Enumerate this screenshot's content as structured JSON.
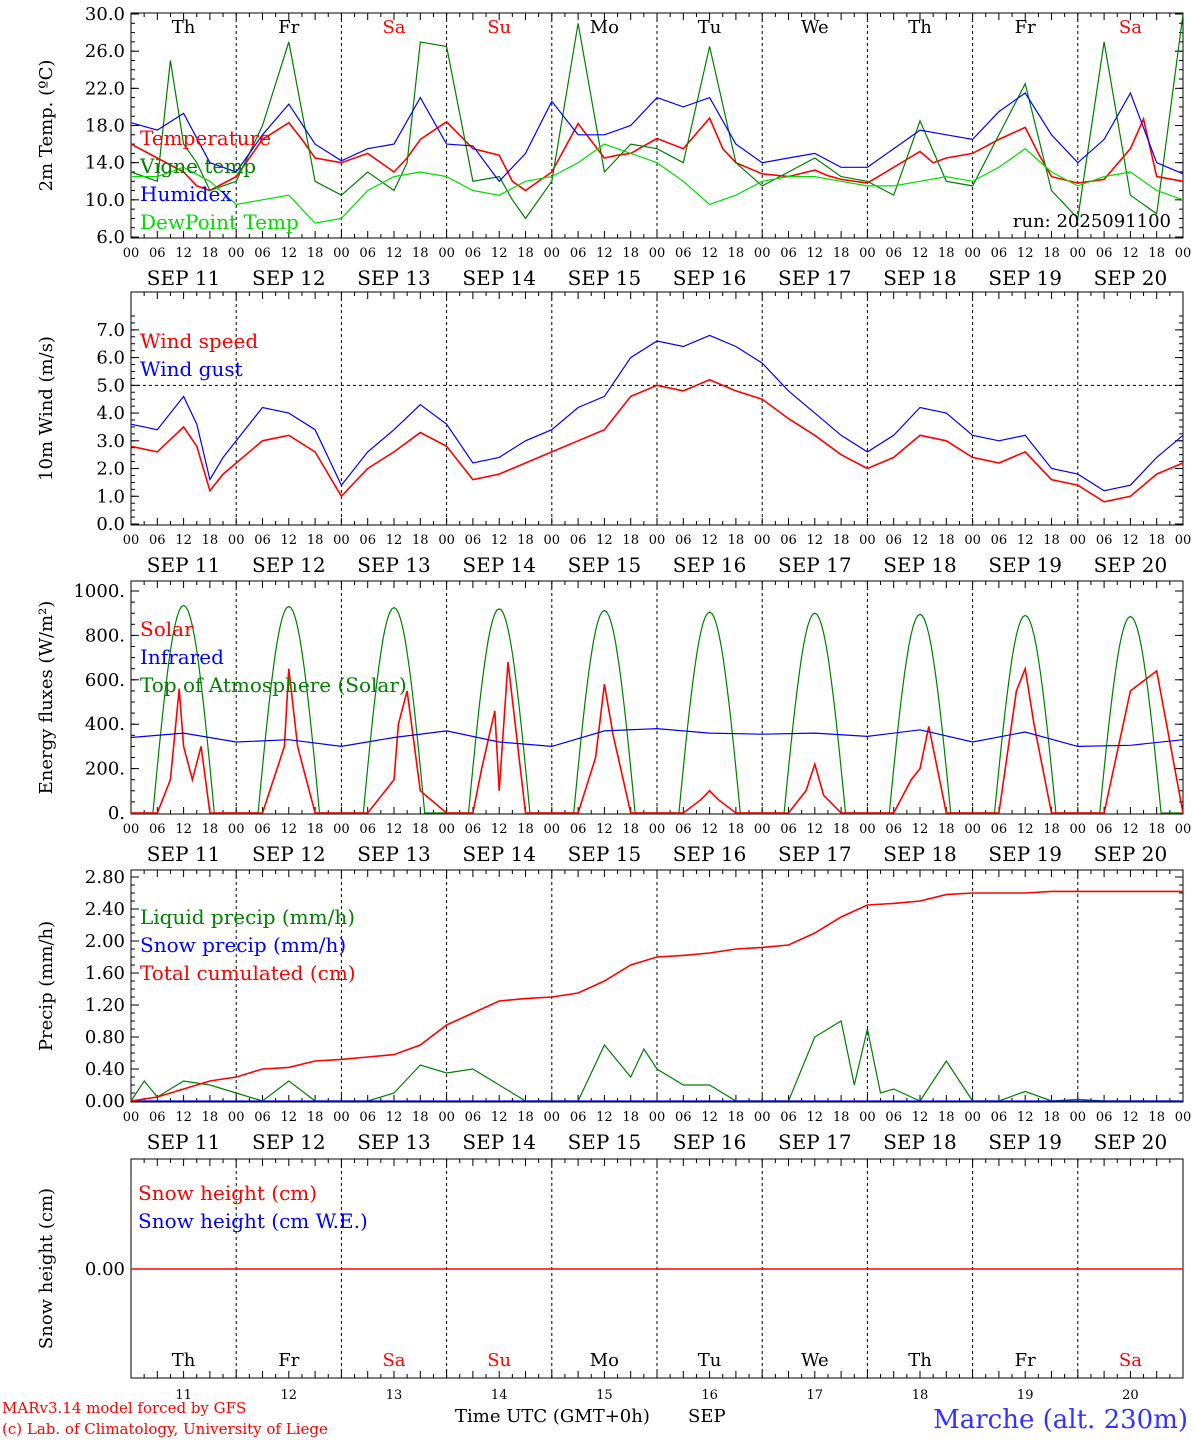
{
  "days_top": [
    "Th",
    "Fr",
    "Sa",
    "Su",
    "Mo",
    "Tu",
    "We",
    "Th",
    "Fr",
    "Sa"
  ],
  "weekend_days": [
    "Sa",
    "Su"
  ],
  "date_labels": [
    "SEP 11",
    "SEP 12",
    "SEP 13",
    "SEP 14",
    "SEP 15",
    "SEP 16",
    "SEP 17",
    "SEP 18",
    "SEP 19",
    "SEP 20"
  ],
  "hour_ticks": [
    "00",
    "06",
    "12",
    "18"
  ],
  "day_numbers": [
    "11",
    "12",
    "13",
    "14",
    "15",
    "16",
    "17",
    "18",
    "19",
    "20"
  ],
  "colors": {
    "red": "#ff0000",
    "green": "#007f00",
    "blue": "#0000ff",
    "lightgreen": "#00dd00",
    "weekend": "#ff0000",
    "text": "#000000"
  },
  "footer": {
    "model": "MARv3.14 model forced by GFS",
    "credit": "(c) Lab. of Climatology, University of Liege",
    "xlabel": "Time UTC (GMT+0h)",
    "month": "SEP",
    "station": "Marche (alt. 230m)"
  },
  "chart_data": [
    {
      "type": "line",
      "ylabel": "2m Temp. (ºC)",
      "ylim": [
        6,
        30
      ],
      "yticks": [
        "6.0",
        "10.0",
        "14.0",
        "18.0",
        "22.0",
        "26.0",
        "30.0"
      ],
      "annotation": "run: 2025091100",
      "x_unit": "hours since 2025-09-11 00 UTC",
      "series": [
        {
          "name": "Temperature",
          "color": "red",
          "x": [
            0,
            6,
            12,
            15,
            18,
            24,
            30,
            36,
            39,
            42,
            48,
            54,
            60,
            63,
            66,
            72,
            78,
            84,
            87,
            90,
            96,
            102,
            108,
            111,
            114,
            120,
            126,
            132,
            135,
            138,
            144,
            150,
            156,
            159,
            162,
            168,
            174,
            180,
            183,
            186,
            192,
            198,
            204,
            207,
            210,
            216,
            222,
            228,
            231,
            234,
            240
          ],
          "values": [
            16,
            14.5,
            13,
            11.5,
            11,
            12.5,
            16.5,
            18.3,
            16.5,
            14.5,
            14,
            15,
            13,
            14.5,
            16.5,
            18.4,
            15.5,
            14.8,
            12,
            11,
            13,
            18.2,
            14.5,
            14.8,
            15,
            16.6,
            15.5,
            18.8,
            15.5,
            14,
            12.8,
            12.5,
            13.2,
            12.6,
            12.2,
            11.8,
            13.5,
            15.2,
            14,
            14.5,
            15,
            16.5,
            17.8,
            15,
            12.5,
            11.8,
            12.2,
            15.5,
            18.7,
            12.5,
            12
          ]
        },
        {
          "name": "Vigne temp",
          "color": "green",
          "x": [
            0,
            6,
            9,
            12,
            15,
            18,
            24,
            30,
            36,
            42,
            48,
            54,
            60,
            63,
            66,
            72,
            78,
            84,
            87,
            90,
            96,
            102,
            108,
            114,
            120,
            126,
            132,
            138,
            144,
            150,
            156,
            162,
            168,
            174,
            180,
            186,
            192,
            198,
            204,
            210,
            216,
            222,
            228,
            234,
            240
          ],
          "values": [
            13,
            12,
            25,
            16,
            14,
            11,
            12,
            18,
            27,
            12,
            10.5,
            13,
            11,
            14,
            27,
            26.5,
            12,
            12.5,
            10,
            8,
            12,
            29,
            13,
            16,
            15.5,
            14,
            26.5,
            14,
            11.5,
            13,
            14.5,
            12.5,
            12,
            10.5,
            18.5,
            12,
            11.5,
            17,
            22.5,
            11,
            8,
            27,
            10.5,
            8.5,
            30
          ]
        },
        {
          "name": "Humidex",
          "color": "blue",
          "x": [
            0,
            6,
            12,
            18,
            24,
            30,
            36,
            42,
            48,
            54,
            60,
            66,
            72,
            78,
            84,
            90,
            96,
            102,
            108,
            114,
            120,
            126,
            132,
            138,
            144,
            150,
            156,
            162,
            168,
            174,
            180,
            186,
            192,
            198,
            204,
            210,
            216,
            222,
            228,
            234,
            240
          ],
          "values": [
            18.3,
            17.5,
            19.3,
            14,
            13,
            17,
            20.3,
            16,
            14.2,
            15.5,
            16,
            21,
            16,
            15.8,
            12,
            15,
            20.6,
            17,
            17,
            18,
            21,
            20,
            21,
            16,
            14,
            14.5,
            15,
            13.5,
            13.5,
            15.5,
            17.5,
            17,
            16.5,
            19.5,
            21.5,
            17,
            14,
            16.5,
            21.5,
            14,
            12.8
          ]
        },
        {
          "name": "DewPoint Temp",
          "color": "lightgreen",
          "x": [
            0,
            6,
            12,
            18,
            24,
            30,
            36,
            42,
            48,
            54,
            60,
            66,
            72,
            78,
            84,
            90,
            96,
            102,
            108,
            114,
            120,
            126,
            132,
            138,
            144,
            150,
            156,
            162,
            168,
            174,
            180,
            186,
            192,
            198,
            204,
            210,
            216,
            222,
            228,
            234,
            240
          ],
          "values": [
            12.5,
            12.5,
            13.5,
            12,
            9.5,
            10,
            10.5,
            7.5,
            8,
            11,
            12.5,
            13,
            12.5,
            11,
            10.5,
            12,
            12.5,
            14,
            16,
            15,
            14,
            12,
            9.5,
            10.5,
            12,
            12.5,
            12.5,
            12,
            11.5,
            11.5,
            12,
            12.5,
            12,
            13.5,
            15.5,
            13,
            11.5,
            12.5,
            13,
            11,
            10
          ]
        }
      ]
    },
    {
      "type": "line",
      "ylabel": "10m Wind (m/s)",
      "ylim": [
        0,
        7.5
      ],
      "yticks": [
        "0.0",
        "1.0",
        "2.0",
        "3.0",
        "4.0",
        "5.0",
        "6.0",
        "7.0"
      ],
      "reference_line": 5.0,
      "x_unit": "hours since 2025-09-11 00 UTC",
      "series": [
        {
          "name": "Wind speed",
          "color": "red",
          "x": [
            0,
            6,
            12,
            15,
            18,
            21,
            24,
            30,
            36,
            42,
            48,
            54,
            60,
            66,
            72,
            78,
            84,
            90,
            96,
            102,
            108,
            114,
            120,
            126,
            132,
            138,
            144,
            150,
            156,
            162,
            168,
            174,
            180,
            186,
            192,
            198,
            204,
            210,
            216,
            222,
            228,
            234,
            240
          ],
          "values": [
            2.8,
            2.6,
            3.5,
            2.8,
            1.2,
            1.8,
            2.2,
            3.0,
            3.2,
            2.6,
            1.0,
            2.0,
            2.6,
            3.3,
            2.8,
            1.6,
            1.8,
            2.2,
            2.6,
            3.0,
            3.4,
            4.6,
            5.0,
            4.8,
            5.2,
            4.8,
            4.5,
            3.8,
            3.2,
            2.5,
            2.0,
            2.4,
            3.2,
            3.0,
            2.4,
            2.2,
            2.6,
            1.6,
            1.4,
            0.8,
            1.0,
            1.8,
            2.2
          ]
        },
        {
          "name": "Wind gust",
          "color": "blue",
          "x": [
            0,
            6,
            12,
            15,
            18,
            21,
            24,
            30,
            36,
            42,
            48,
            54,
            60,
            66,
            72,
            78,
            84,
            90,
            96,
            102,
            108,
            114,
            120,
            126,
            132,
            138,
            144,
            150,
            156,
            162,
            168,
            174,
            180,
            186,
            192,
            198,
            204,
            210,
            216,
            222,
            228,
            234,
            240
          ],
          "values": [
            3.6,
            3.4,
            4.6,
            3.6,
            1.6,
            2.4,
            3.0,
            4.2,
            4.0,
            3.4,
            1.4,
            2.6,
            3.4,
            4.3,
            3.6,
            2.2,
            2.4,
            3.0,
            3.4,
            4.2,
            4.6,
            6.0,
            6.6,
            6.4,
            6.8,
            6.4,
            5.8,
            4.8,
            4.0,
            3.2,
            2.6,
            3.2,
            4.2,
            4.0,
            3.2,
            3.0,
            3.2,
            2.0,
            1.8,
            1.2,
            1.4,
            2.4,
            3.2
          ]
        }
      ]
    },
    {
      "type": "line",
      "ylabel": "Energy fluxes (W/m²)",
      "ylim": [
        0,
        1000
      ],
      "yticks": [
        "0.",
        "200.",
        "400.",
        "600.",
        "800.",
        "1000."
      ],
      "x_unit": "hours since 2025-09-11 00 UTC",
      "daily_toa_peak": [
        935,
        930,
        925,
        920,
        912,
        905,
        900,
        895,
        890,
        885
      ],
      "series": [
        {
          "name": "Solar",
          "color": "red",
          "x": [
            0,
            6,
            9,
            11,
            12,
            14,
            16,
            18,
            24,
            30,
            35,
            36,
            38,
            42,
            48,
            54,
            60,
            61,
            63,
            66,
            72,
            78,
            80,
            83,
            84,
            86,
            90,
            96,
            102,
            106,
            108,
            110,
            114,
            120,
            126,
            130,
            132,
            134,
            138,
            144,
            150,
            154,
            156,
            158,
            162,
            168,
            174,
            178,
            180,
            182,
            186,
            192,
            198,
            202,
            204,
            206,
            210,
            216,
            222,
            228,
            234,
            240
          ],
          "values": [
            0,
            0,
            150,
            560,
            300,
            150,
            300,
            0,
            0,
            0,
            300,
            650,
            300,
            0,
            0,
            0,
            150,
            400,
            550,
            100,
            0,
            0,
            200,
            460,
            100,
            680,
            0,
            0,
            0,
            250,
            580,
            350,
            0,
            0,
            0,
            60,
            100,
            60,
            0,
            0,
            0,
            100,
            220,
            80,
            0,
            0,
            0,
            150,
            200,
            390,
            0,
            0,
            0,
            550,
            650,
            400,
            0,
            0,
            0,
            550,
            640,
            0
          ]
        },
        {
          "name": "Infrared",
          "color": "blue",
          "x": [
            0,
            12,
            24,
            36,
            48,
            60,
            72,
            84,
            96,
            108,
            120,
            132,
            144,
            156,
            168,
            180,
            192,
            204,
            216,
            228,
            240
          ],
          "values": [
            340,
            360,
            320,
            330,
            300,
            340,
            370,
            320,
            300,
            370,
            380,
            360,
            355,
            360,
            345,
            375,
            320,
            365,
            300,
            305,
            330
          ]
        },
        {
          "name": "Top of Atmosphere (Solar)",
          "color": "green",
          "x": [],
          "values": []
        }
      ]
    },
    {
      "type": "line",
      "ylabel": "Precip (mm/h)",
      "ylim": [
        0,
        2.8
      ],
      "yticks": [
        "0.00",
        "0.40",
        "0.80",
        "1.20",
        "1.60",
        "2.00",
        "2.40",
        "2.80"
      ],
      "x_unit": "hours since 2025-09-11 00 UTC",
      "series": [
        {
          "name": "Liquid precip (mm/h)",
          "color": "green",
          "x": [
            0,
            3,
            6,
            12,
            18,
            24,
            30,
            36,
            42,
            48,
            54,
            60,
            66,
            72,
            78,
            84,
            90,
            96,
            102,
            108,
            114,
            117,
            120,
            126,
            132,
            138,
            144,
            150,
            156,
            162,
            165,
            168,
            171,
            174,
            180,
            186,
            192,
            198,
            204,
            210,
            216,
            222,
            228,
            234,
            240
          ],
          "values": [
            0,
            0.25,
            0.05,
            0.25,
            0.2,
            0.1,
            0,
            0.25,
            0,
            0,
            0,
            0.1,
            0.45,
            0.35,
            0.4,
            0.2,
            0,
            0,
            0,
            0.7,
            0.3,
            0.65,
            0.4,
            0.2,
            0.2,
            0,
            0,
            0,
            0.8,
            1.0,
            0.2,
            0.9,
            0.1,
            0.15,
            0,
            0.5,
            0,
            0,
            0.12,
            0,
            0.02,
            0,
            0,
            0,
            0
          ]
        },
        {
          "name": "Snow precip (mm/h)",
          "color": "blue",
          "x": [
            0,
            240
          ],
          "values": [
            0,
            0
          ]
        },
        {
          "name": "Total cumulated (cm)",
          "color": "red",
          "x": [
            0,
            6,
            12,
            18,
            24,
            30,
            36,
            42,
            48,
            54,
            60,
            66,
            72,
            78,
            84,
            90,
            96,
            102,
            108,
            114,
            120,
            126,
            132,
            138,
            144,
            150,
            156,
            162,
            168,
            174,
            180,
            186,
            192,
            198,
            204,
            210,
            216,
            222,
            228,
            234,
            240
          ],
          "values": [
            0,
            0.05,
            0.15,
            0.25,
            0.3,
            0.4,
            0.42,
            0.5,
            0.52,
            0.55,
            0.58,
            0.7,
            0.95,
            1.1,
            1.25,
            1.28,
            1.3,
            1.35,
            1.5,
            1.7,
            1.8,
            1.82,
            1.85,
            1.9,
            1.92,
            1.95,
            2.1,
            2.3,
            2.45,
            2.47,
            2.5,
            2.58,
            2.6,
            2.6,
            2.6,
            2.62,
            2.62,
            2.62,
            2.62,
            2.62,
            2.62
          ]
        }
      ]
    },
    {
      "type": "line",
      "ylabel": "Snow height (cm)",
      "yticks": [
        "0.00"
      ],
      "x_unit": "hours since 2025-09-11 00 UTC",
      "series": [
        {
          "name": "Snow height (cm)",
          "color": "red",
          "x": [
            0,
            240
          ],
          "values": [
            0,
            0
          ]
        },
        {
          "name": "Snow height (cm W.E.)",
          "color": "blue",
          "x": [],
          "values": []
        }
      ]
    }
  ]
}
